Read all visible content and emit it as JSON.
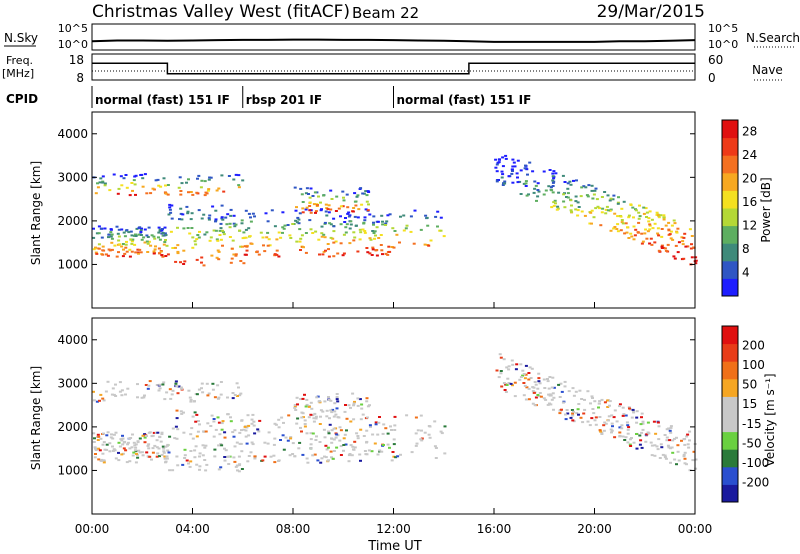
{
  "header": {
    "station": "Christmas Valley West (fitACF)",
    "beam": "Beam 22",
    "date": "29/Mar/2015"
  },
  "nsky_panel": {
    "left_label": "N.Sky",
    "right_label": "N.Search",
    "left_ticks": [
      "10^5",
      "10^0"
    ],
    "right_ticks": [
      "10^5",
      "10^0"
    ]
  },
  "freq_panel": {
    "left_label_line1": "Freq.",
    "left_label_line2": "[MHz]",
    "right_label": "Nave",
    "left_ticks": [
      "18",
      "8"
    ],
    "right_ticks": [
      "60",
      "0"
    ]
  },
  "cpid": {
    "label": "CPID",
    "segments": [
      {
        "start": 0,
        "label": "normal (fast) 151 IF"
      },
      {
        "start": 6,
        "label": "rbsp 201 IF"
      },
      {
        "start": 12,
        "label": "normal (fast) 151 IF"
      }
    ]
  },
  "x_axis": {
    "title": "Time UT",
    "ticks": [
      "00:00",
      "04:00",
      "08:00",
      "12:00",
      "16:00",
      "20:00",
      "00:00"
    ]
  },
  "colors": {
    "power": [
      "#1e1eff",
      "#2f56c4",
      "#3f8a7a",
      "#5eae60",
      "#b4d836",
      "#f4e020",
      "#f7a820",
      "#f47020",
      "#ee3a18",
      "#e01010"
    ],
    "velocity": [
      "#1a1a9e",
      "#2a4fd0",
      "#2a7a3a",
      "#6ad040",
      "#c8c8c8",
      "#c8c8c8",
      "#f5a623",
      "#f07018",
      "#e83c18",
      "#e01010"
    ]
  },
  "chart_data": [
    {
      "type": "line",
      "title": "N.Sky / N.Search",
      "x": [
        0,
        1,
        2,
        3,
        4,
        5,
        6,
        7,
        8,
        9,
        10,
        11,
        12,
        13,
        14,
        15,
        16,
        17,
        18,
        19,
        20,
        21,
        22,
        23,
        24
      ],
      "series": [
        {
          "name": "N.Sky",
          "values": [
            40,
            60,
            60,
            50,
            60,
            70,
            80,
            80,
            90,
            90,
            80,
            80,
            70,
            60,
            50,
            40,
            30,
            30,
            30,
            30,
            30,
            40,
            40,
            50,
            70
          ]
        }
      ],
      "ylim": [
        1,
        100000
      ],
      "yscale": "log"
    },
    {
      "type": "line",
      "title": "Freq. / Nave",
      "x": [
        0,
        3,
        3,
        15,
        15,
        24
      ],
      "series": [
        {
          "name": "Freq.",
          "values": [
            14.6,
            14.6,
            10.2,
            10.2,
            14.6,
            14.6
          ]
        },
        {
          "name": "Nave",
          "values": [
            20,
            20,
            20,
            20,
            20,
            20
          ]
        }
      ],
      "ylim": [
        8,
        18
      ]
    },
    {
      "type": "heatmap",
      "title": "Power",
      "xlabel": "Time UT",
      "ylabel": "Slant Range [km]",
      "xlim": [
        0,
        24
      ],
      "ylim": [
        0,
        4500
      ],
      "yticks": [
        1000,
        2000,
        3000,
        4000
      ],
      "colorbar_label": "Power [dB]",
      "colorbar_ticks": [
        4,
        8,
        12,
        16,
        20,
        24,
        28
      ],
      "colorbar_range": [
        0,
        30
      ]
    },
    {
      "type": "heatmap",
      "title": "Velocity",
      "xlabel": "Time UT",
      "ylabel": "Slant Range [km]",
      "xlim": [
        0,
        24
      ],
      "ylim": [
        0,
        4500
      ],
      "yticks": [
        1000,
        2000,
        3000,
        4000
      ],
      "colorbar_label": "Velocity [m s⁻¹]",
      "colorbar_ticks": [
        -200,
        -100,
        -50,
        -15,
        15,
        50,
        100,
        200
      ]
    }
  ]
}
